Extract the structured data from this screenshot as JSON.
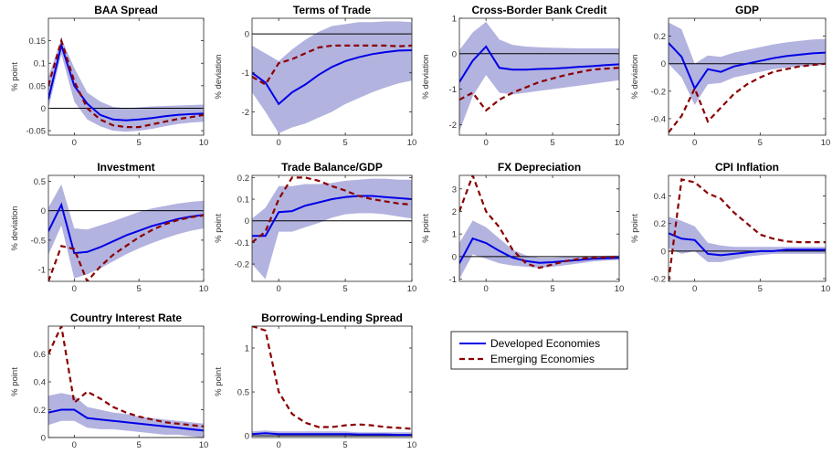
{
  "legend": {
    "placement": "right of bottom row",
    "entries": [
      {
        "label": "Developed Economies",
        "color": "#0000e6",
        "style": "solid"
      },
      {
        "label": "Emerging Economies",
        "color": "#8b0000",
        "style": "dashed"
      }
    ]
  },
  "band_color": "#b3b3e0",
  "chart_data": [
    {
      "type": "line",
      "title": "BAA Spread",
      "ylabel": "% point",
      "xlim": [
        -2,
        10
      ],
      "ylim": [
        -0.06,
        0.2
      ],
      "xticks": [
        0,
        5,
        10
      ],
      "yticks": [
        -0.05,
        0,
        0.05,
        0.1,
        0.15
      ],
      "ytick_labels": [
        "-0.05",
        "0",
        "0.05",
        "0.1",
        "0.15"
      ],
      "x": [
        -2,
        -1,
        0,
        1,
        2,
        3,
        4,
        5,
        6,
        7,
        8,
        9,
        10
      ],
      "series": [
        {
          "name": "Developed Economies",
          "values": [
            0.02,
            0.14,
            0.05,
            0.01,
            -0.015,
            -0.025,
            -0.027,
            -0.025,
            -0.022,
            -0.018,
            -0.015,
            -0.013,
            -0.012
          ]
        },
        {
          "name": "Emerging Economies",
          "values": [
            0.05,
            0.15,
            0.06,
            0.0,
            -0.025,
            -0.038,
            -0.042,
            -0.042,
            -0.036,
            -0.03,
            -0.024,
            -0.02,
            -0.015
          ]
        }
      ],
      "band": {
        "upper": [
          0.07,
          0.155,
          0.09,
          0.035,
          0.015,
          0.003,
          0.0,
          0.002,
          0.004,
          0.005,
          0.006,
          0.007,
          0.008
        ],
        "lower": [
          0.0,
          0.12,
          0.015,
          -0.025,
          -0.04,
          -0.05,
          -0.052,
          -0.05,
          -0.046,
          -0.04,
          -0.035,
          -0.032,
          -0.03
        ]
      }
    },
    {
      "type": "line",
      "title": "Terms of Trade",
      "ylabel": "% deviation",
      "xlim": [
        -2,
        10
      ],
      "ylim": [
        -2.6,
        0.4
      ],
      "xticks": [
        0,
        5,
        10
      ],
      "yticks": [
        -2,
        -1,
        0
      ],
      "ytick_labels": [
        "-2",
        "-1",
        "0"
      ],
      "x": [
        -2,
        -1,
        0,
        1,
        2,
        3,
        4,
        5,
        6,
        7,
        8,
        9,
        10
      ],
      "series": [
        {
          "name": "Developed Economies",
          "values": [
            -1.0,
            -1.25,
            -1.8,
            -1.5,
            -1.3,
            -1.05,
            -0.85,
            -0.7,
            -0.6,
            -0.52,
            -0.47,
            -0.43,
            -0.42
          ]
        },
        {
          "name": "Emerging Economies",
          "values": [
            -1.1,
            -1.3,
            -0.75,
            -0.65,
            -0.5,
            -0.35,
            -0.3,
            -0.3,
            -0.3,
            -0.3,
            -0.3,
            -0.32,
            -0.3
          ]
        }
      ],
      "band": {
        "upper": [
          -0.3,
          -0.5,
          -0.7,
          -0.4,
          -0.15,
          0.05,
          0.2,
          0.25,
          0.3,
          0.3,
          0.32,
          0.32,
          0.3
        ],
        "lower": [
          -1.5,
          -2.0,
          -2.55,
          -2.4,
          -2.3,
          -2.15,
          -2.0,
          -1.8,
          -1.65,
          -1.5,
          -1.38,
          -1.27,
          -1.2
        ]
      }
    },
    {
      "type": "line",
      "title": "Cross-Border Bank Credit",
      "ylabel": "% deviation",
      "xlim": [
        -2,
        10
      ],
      "ylim": [
        -2.3,
        1.0
      ],
      "xticks": [
        0,
        5,
        10
      ],
      "yticks": [
        -2,
        -1,
        0,
        1
      ],
      "ytick_labels": [
        "-2",
        "-1",
        "0",
        "1"
      ],
      "x": [
        -2,
        -1,
        0,
        1,
        2,
        3,
        4,
        5,
        6,
        7,
        8,
        9,
        10
      ],
      "series": [
        {
          "name": "Developed Economies",
          "values": [
            -0.8,
            -0.2,
            0.2,
            -0.4,
            -0.45,
            -0.45,
            -0.43,
            -0.42,
            -0.4,
            -0.37,
            -0.35,
            -0.32,
            -0.3
          ]
        },
        {
          "name": "Emerging Economies",
          "values": [
            -1.3,
            -1.1,
            -1.6,
            -1.3,
            -1.1,
            -0.95,
            -0.8,
            -0.7,
            -0.6,
            -0.52,
            -0.45,
            -0.42,
            -0.4
          ]
        }
      ],
      "band": {
        "upper": [
          0.1,
          0.6,
          0.9,
          0.4,
          0.25,
          0.2,
          0.18,
          0.17,
          0.16,
          0.15,
          0.15,
          0.15,
          0.15
        ],
        "lower": [
          -2.2,
          -1.2,
          -0.6,
          -1.1,
          -1.15,
          -1.1,
          -1.05,
          -1.0,
          -0.95,
          -0.9,
          -0.85,
          -0.8,
          -0.75
        ]
      }
    },
    {
      "type": "line",
      "title": "GDP",
      "ylabel": "% deviation",
      "xlim": [
        -2,
        10
      ],
      "ylim": [
        -0.52,
        0.33
      ],
      "xticks": [
        0,
        5,
        10
      ],
      "yticks": [
        -0.4,
        -0.2,
        0,
        0.2
      ],
      "ytick_labels": [
        "-0.4",
        "-0.2",
        "0",
        "0.2"
      ],
      "x": [
        -2,
        -1,
        0,
        1,
        2,
        3,
        4,
        5,
        6,
        7,
        8,
        9,
        10
      ],
      "series": [
        {
          "name": "Developed Economies",
          "values": [
            0.15,
            0.05,
            -0.18,
            -0.04,
            -0.06,
            -0.02,
            0.0,
            0.02,
            0.04,
            0.055,
            0.065,
            0.075,
            0.08
          ]
        },
        {
          "name": "Emerging Economies",
          "values": [
            -0.5,
            -0.38,
            -0.18,
            -0.42,
            -0.32,
            -0.22,
            -0.15,
            -0.1,
            -0.06,
            -0.04,
            -0.02,
            -0.01,
            0.0
          ]
        }
      ],
      "band": {
        "upper": [
          0.3,
          0.25,
          0.0,
          0.06,
          0.05,
          0.08,
          0.1,
          0.12,
          0.14,
          0.155,
          0.165,
          0.175,
          0.18
        ],
        "lower": [
          0.0,
          -0.1,
          -0.3,
          -0.15,
          -0.14,
          -0.1,
          -0.08,
          -0.06,
          -0.04,
          -0.03,
          -0.02,
          -0.015,
          -0.01
        ]
      }
    },
    {
      "type": "line",
      "title": "Investment",
      "ylabel": "% deviation",
      "xlim": [
        -2,
        10
      ],
      "ylim": [
        -1.2,
        0.6
      ],
      "xticks": [
        0,
        5,
        10
      ],
      "yticks": [
        -1,
        -0.5,
        0,
        0.5
      ],
      "ytick_labels": [
        "-1",
        "-0.5",
        "0",
        "0.5"
      ],
      "x": [
        -2,
        -1,
        0,
        1,
        2,
        3,
        4,
        5,
        6,
        7,
        8,
        9,
        10
      ],
      "series": [
        {
          "name": "Developed Economies",
          "values": [
            -0.35,
            0.1,
            -0.72,
            -0.7,
            -0.62,
            -0.52,
            -0.42,
            -0.34,
            -0.26,
            -0.2,
            -0.14,
            -0.1,
            -0.07
          ]
        },
        {
          "name": "Emerging Economies",
          "values": [
            -1.2,
            -0.6,
            -0.65,
            -1.2,
            -0.95,
            -0.75,
            -0.6,
            -0.45,
            -0.33,
            -0.23,
            -0.16,
            -0.11,
            -0.08
          ]
        }
      ],
      "band": {
        "upper": [
          0.05,
          0.45,
          -0.3,
          -0.32,
          -0.25,
          -0.18,
          -0.1,
          -0.02,
          0.04,
          0.08,
          0.12,
          0.15,
          0.17
        ],
        "lower": [
          -0.75,
          -0.25,
          -1.15,
          -1.08,
          -0.98,
          -0.86,
          -0.74,
          -0.64,
          -0.55,
          -0.47,
          -0.4,
          -0.34,
          -0.3
        ]
      }
    },
    {
      "type": "line",
      "title": "Trade Balance/GDP",
      "ylabel": "% point",
      "xlim": [
        -2,
        10
      ],
      "ylim": [
        -0.28,
        0.21
      ],
      "xticks": [
        0,
        5,
        10
      ],
      "yticks": [
        -0.2,
        -0.1,
        0,
        0.1,
        0.2
      ],
      "ytick_labels": [
        "-0.2",
        "-0.1",
        "0",
        "0.1",
        "0.2"
      ],
      "x": [
        -2,
        -1,
        0,
        1,
        2,
        3,
        4,
        5,
        6,
        7,
        8,
        9,
        10
      ],
      "series": [
        {
          "name": "Developed Economies",
          "values": [
            -0.07,
            -0.07,
            0.04,
            0.045,
            0.07,
            0.085,
            0.1,
            0.11,
            0.115,
            0.115,
            0.11,
            0.105,
            0.1
          ]
        },
        {
          "name": "Emerging Economies",
          "values": [
            -0.1,
            -0.05,
            0.1,
            0.2,
            0.2,
            0.185,
            0.16,
            0.14,
            0.115,
            0.1,
            0.09,
            0.08,
            0.075
          ]
        }
      ],
      "band": {
        "upper": [
          0.01,
          0.06,
          0.16,
          0.16,
          0.17,
          0.17,
          0.175,
          0.185,
          0.19,
          0.195,
          0.195,
          0.19,
          0.19
        ],
        "lower": [
          -0.2,
          -0.27,
          -0.05,
          -0.05,
          -0.03,
          -0.01,
          0.015,
          0.03,
          0.035,
          0.035,
          0.03,
          0.02,
          0.01
        ]
      }
    },
    {
      "type": "line",
      "title": "FX Depreciation",
      "ylabel": "% point",
      "xlim": [
        -2,
        10
      ],
      "ylim": [
        -1.1,
        3.6
      ],
      "xticks": [
        0,
        5,
        10
      ],
      "yticks": [
        -1,
        0,
        1,
        2,
        3
      ],
      "ytick_labels": [
        "-1",
        "0",
        "1",
        "2",
        "3"
      ],
      "x": [
        -2,
        -1,
        0,
        1,
        2,
        3,
        4,
        5,
        6,
        7,
        8,
        9,
        10
      ],
      "series": [
        {
          "name": "Developed Economies",
          "values": [
            -0.3,
            0.8,
            0.6,
            0.25,
            -0.05,
            -0.2,
            -0.28,
            -0.25,
            -0.2,
            -0.15,
            -0.1,
            -0.08,
            -0.06
          ]
        },
        {
          "name": "Emerging Economies",
          "values": [
            2.0,
            3.6,
            2.0,
            1.3,
            0.3,
            -0.3,
            -0.5,
            -0.35,
            -0.2,
            -0.1,
            -0.05,
            -0.03,
            -0.02
          ]
        }
      ],
      "band": {
        "upper": [
          0.6,
          1.6,
          1.3,
          0.8,
          0.3,
          0.05,
          -0.05,
          -0.05,
          -0.02,
          0.0,
          0.02,
          0.04,
          0.05
        ],
        "lower": [
          -1.0,
          0.1,
          -0.1,
          -0.3,
          -0.4,
          -0.45,
          -0.5,
          -0.45,
          -0.38,
          -0.3,
          -0.22,
          -0.18,
          -0.15
        ]
      }
    },
    {
      "type": "line",
      "title": "CPI Inflation",
      "ylabel": "% point",
      "xlim": [
        -2,
        10
      ],
      "ylim": [
        -0.22,
        0.55
      ],
      "xticks": [
        0,
        5,
        10
      ],
      "yticks": [
        -0.2,
        0,
        0.2,
        0.4
      ],
      "ytick_labels": [
        "-0.2",
        "0",
        "0.2",
        "0.4"
      ],
      "x": [
        -2,
        -1,
        0,
        1,
        2,
        3,
        4,
        5,
        6,
        7,
        8,
        9,
        10
      ],
      "series": [
        {
          "name": "Developed Economies",
          "values": [
            0.13,
            0.09,
            0.08,
            -0.02,
            -0.03,
            -0.02,
            -0.01,
            0.0,
            0.0,
            0.01,
            0.01,
            0.01,
            0.01
          ]
        },
        {
          "name": "Emerging Economies",
          "values": [
            -0.22,
            0.52,
            0.5,
            0.42,
            0.38,
            0.28,
            0.2,
            0.12,
            0.09,
            0.07,
            0.065,
            0.065,
            0.065
          ]
        }
      ],
      "band": {
        "upper": [
          0.25,
          0.22,
          0.18,
          0.06,
          0.04,
          0.03,
          0.03,
          0.03,
          0.03,
          0.03,
          0.03,
          0.03,
          0.03
        ],
        "lower": [
          0.02,
          -0.02,
          0.0,
          -0.08,
          -0.08,
          -0.06,
          -0.04,
          -0.03,
          -0.02,
          -0.02,
          -0.02,
          -0.02,
          -0.02
        ]
      }
    },
    {
      "type": "line",
      "title": "Country Interest Rate",
      "ylabel": "% point",
      "xlim": [
        -2,
        10
      ],
      "ylim": [
        0,
        0.8
      ],
      "xticks": [
        0,
        5,
        10
      ],
      "yticks": [
        0,
        0.2,
        0.4,
        0.6
      ],
      "ytick_labels": [
        "0",
        "0.2",
        "0.4",
        "0.6"
      ],
      "x": [
        -2,
        -1,
        0,
        1,
        2,
        3,
        4,
        5,
        6,
        7,
        8,
        9,
        10
      ],
      "series": [
        {
          "name": "Developed Economies",
          "values": [
            0.18,
            0.2,
            0.2,
            0.14,
            0.13,
            0.12,
            0.11,
            0.1,
            0.09,
            0.08,
            0.07,
            0.06,
            0.05
          ]
        },
        {
          "name": "Emerging Economies",
          "values": [
            0.6,
            0.8,
            0.25,
            0.33,
            0.28,
            0.22,
            0.18,
            0.15,
            0.13,
            0.11,
            0.1,
            0.09,
            0.08
          ]
        }
      ],
      "band": {
        "upper": [
          0.3,
          0.32,
          0.3,
          0.22,
          0.2,
          0.18,
          0.17,
          0.15,
          0.14,
          0.13,
          0.12,
          0.11,
          0.1
        ],
        "lower": [
          0.09,
          0.12,
          0.12,
          0.07,
          0.06,
          0.06,
          0.05,
          0.04,
          0.03,
          0.02,
          0.02,
          0.01,
          0.0
        ]
      }
    },
    {
      "type": "line",
      "title": "Borrowing-Lending Spread",
      "ylabel": "% point",
      "xlim": [
        -2,
        10
      ],
      "ylim": [
        -0.02,
        1.25
      ],
      "xticks": [
        0,
        5,
        10
      ],
      "yticks": [
        0,
        0.5,
        1
      ],
      "ytick_labels": [
        "0",
        "0.5",
        "1"
      ],
      "x": [
        -2,
        -1,
        0,
        1,
        2,
        3,
        4,
        5,
        6,
        7,
        8,
        9,
        10
      ],
      "series": [
        {
          "name": "Developed Economies",
          "values": [
            0.02,
            0.03,
            0.02,
            0.02,
            0.02,
            0.02,
            0.02,
            0.02,
            0.015,
            0.015,
            0.015,
            0.01,
            0.01
          ]
        },
        {
          "name": "Emerging Economies",
          "values": [
            1.25,
            1.2,
            0.5,
            0.25,
            0.15,
            0.1,
            0.1,
            0.12,
            0.13,
            0.12,
            0.1,
            0.09,
            0.08
          ]
        }
      ],
      "band": {
        "upper": [
          0.05,
          0.06,
          0.05,
          0.05,
          0.05,
          0.05,
          0.05,
          0.05,
          0.04,
          0.04,
          0.04,
          0.04,
          0.04
        ],
        "lower": [
          0.0,
          0.0,
          -0.005,
          0.0,
          0.0,
          0.0,
          0.0,
          0.0,
          0.0,
          0.0,
          0.0,
          0.0,
          0.0
        ]
      }
    }
  ]
}
